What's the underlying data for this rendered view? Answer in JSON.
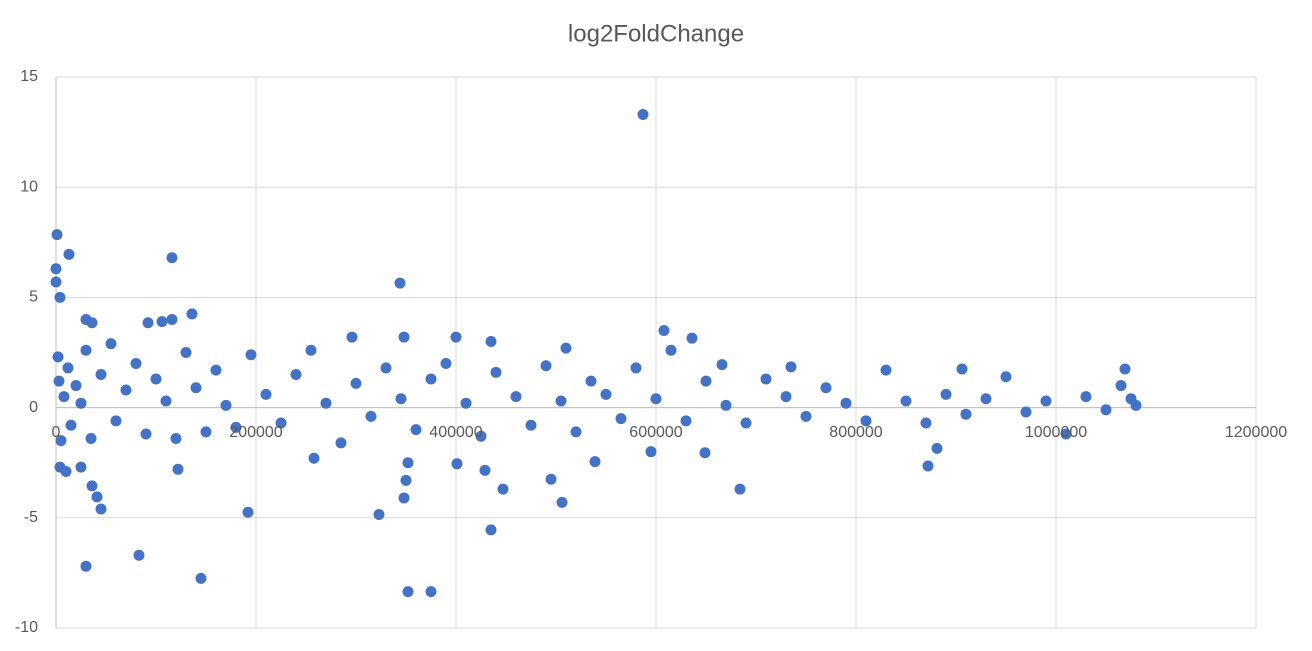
{
  "chart_data": {
    "type": "scatter",
    "title": "log2FoldChange",
    "color": "#4472c4",
    "grid": true,
    "xlim": [
      0,
      1200000
    ],
    "xticks": [
      0,
      200000,
      400000,
      600000,
      800000,
      1000000,
      1200000
    ],
    "ylim": [
      -10,
      15
    ],
    "yticks": [
      -10,
      -5,
      0,
      5,
      10,
      15
    ],
    "x": [
      587000,
      1000,
      0,
      0,
      4000,
      13000,
      116000,
      344000,
      136000,
      30000,
      36000,
      92000,
      106000,
      116000,
      608000,
      636000,
      400000,
      348000,
      296000,
      435000,
      510000,
      666000,
      735000,
      1069000,
      906000,
      145000,
      30000,
      83000,
      352000,
      375000,
      435000,
      192000,
      323000,
      45000,
      41000,
      348000,
      506000,
      684000,
      447000,
      36000,
      495000,
      350000,
      122000,
      429000,
      401000,
      352000,
      872000,
      25000,
      4000,
      10000,
      539000,
      258000,
      595000,
      649000,
      881000,
      2000,
      3000,
      5000,
      8000,
      12000,
      15000,
      20000,
      25000,
      30000,
      35000,
      45000,
      55000,
      60000,
      70000,
      80000,
      90000,
      100000,
      110000,
      120000,
      130000,
      140000,
      150000,
      160000,
      170000,
      180000,
      195000,
      210000,
      225000,
      240000,
      255000,
      270000,
      285000,
      300000,
      315000,
      330000,
      345000,
      360000,
      375000,
      390000,
      410000,
      425000,
      440000,
      460000,
      475000,
      490000,
      505000,
      520000,
      535000,
      550000,
      565000,
      580000,
      600000,
      615000,
      630000,
      650000,
      670000,
      690000,
      710000,
      730000,
      750000,
      770000,
      790000,
      810000,
      830000,
      850000,
      870000,
      890000,
      910000,
      930000,
      950000,
      970000,
      990000,
      1010000,
      1030000,
      1050000,
      1065000,
      1075000,
      1080000
    ],
    "values": [
      13.3,
      7.85,
      6.3,
      5.7,
      5.0,
      6.95,
      6.8,
      5.65,
      4.25,
      4.0,
      3.85,
      3.85,
      3.9,
      4.0,
      3.5,
      3.15,
      3.2,
      3.2,
      3.2,
      3.0,
      2.7,
      1.95,
      1.85,
      1.75,
      1.75,
      -7.75,
      -7.2,
      -6.7,
      -8.35,
      -8.35,
      -5.55,
      -4.75,
      -4.85,
      -4.6,
      -4.05,
      -4.1,
      -4.3,
      -3.7,
      -3.7,
      -3.55,
      -3.25,
      -3.3,
      -2.8,
      -2.85,
      -2.55,
      -2.5,
      -2.65,
      -2.7,
      -2.7,
      -2.9,
      -2.45,
      -2.3,
      -2.0,
      -2.05,
      -1.85,
      2.3,
      1.2,
      -1.5,
      0.5,
      1.8,
      -0.8,
      1.0,
      0.2,
      2.6,
      -1.4,
      1.5,
      2.9,
      -0.6,
      0.8,
      2.0,
      -1.2,
      1.3,
      0.3,
      -1.4,
      2.5,
      0.9,
      -1.1,
      1.7,
      0.1,
      -0.9,
      2.4,
      0.6,
      -0.7,
      1.5,
      2.6,
      0.2,
      -1.6,
      1.1,
      -0.4,
      1.8,
      0.4,
      -1.0,
      1.3,
      2.0,
      0.2,
      -1.3,
      1.6,
      0.5,
      -0.8,
      1.9,
      0.3,
      -1.1,
      1.2,
      0.6,
      -0.5,
      1.8,
      0.4,
      2.6,
      -0.6,
      1.2,
      0.1,
      -0.7,
      1.3,
      0.5,
      -0.4,
      0.9,
      0.2,
      -0.6,
      1.7,
      0.3,
      -0.7,
      0.6,
      -0.3,
      0.4,
      1.4,
      -0.2,
      0.3,
      -1.2,
      0.5,
      -0.1,
      1.0,
      0.4,
      0.1
    ]
  }
}
